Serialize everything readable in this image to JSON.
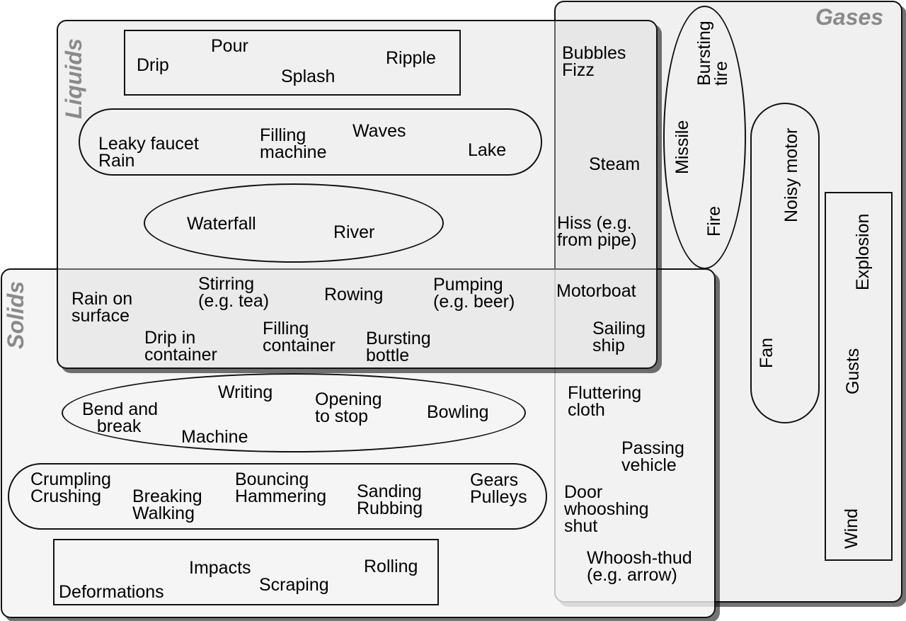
{
  "regions": {
    "liquids": "Liquids",
    "solids": "Solids",
    "gases": "Gases"
  },
  "labels": {
    "drip": "Drip",
    "pour": "Pour",
    "splash": "Splash",
    "ripple": "Ripple",
    "leaky_faucet": "Leaky faucet\nRain",
    "filling_machine": "Filling\nmachine",
    "waves": "Waves",
    "lake": "Lake",
    "waterfall": "Waterfall",
    "river": "River",
    "bubbles": "Bubbles\nFizz",
    "steam": "Steam",
    "hiss": "Hiss (e.g.\nfrom pipe)",
    "rain_on_surface": "Rain on\nsurface",
    "stirring": "Stirring\n(e.g. tea)",
    "rowing": "Rowing",
    "pumping": "Pumping\n(e.g. beer)",
    "motorboat": "Motorboat",
    "drip_in_container": "Drip in\ncontainer",
    "filling_container": "Filling\ncontainer",
    "bursting_bottle": "Bursting\nbottle",
    "sailing_ship": "Sailing\nship",
    "bend_and_break": "Bend and\n   break",
    "writing": "Writing",
    "opening_to_stop": "Opening\nto stop",
    "bowling": "Bowling",
    "machine": "Machine",
    "crumpling": "Crumpling\nCrushing",
    "breaking": "Breaking\nWalking",
    "bouncing": "Bouncing\nHammering",
    "sanding": "Sanding\nRubbing",
    "gears": "Gears\nPulleys",
    "impacts": "Impacts",
    "rolling": "Rolling",
    "scraping": "Scraping",
    "deformations": "Deformations",
    "fluttering": "Fluttering\ncloth",
    "passing_vehicle": "Passing\nvehicle",
    "door": "Door\nwhooshing\nshut",
    "whoosh_thud": "Whoosh-thud\n(e.g. arrow)",
    "bursting_tire": "Bursting\ntire",
    "missile": "Missile",
    "fire": "Fire",
    "noisy_motor": "Noisy motor",
    "fan": "Fan",
    "explosion": "Explosion",
    "gusts": "Gusts",
    "wind": "Wind"
  }
}
